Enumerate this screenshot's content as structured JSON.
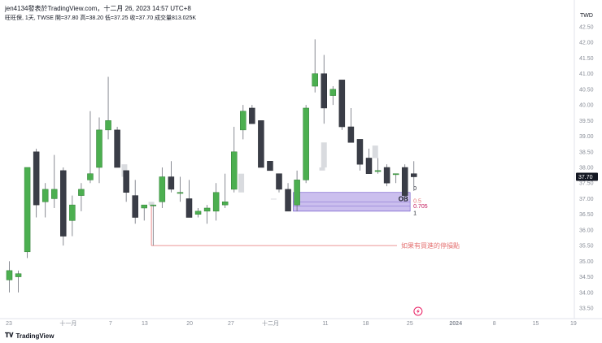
{
  "header": {
    "publish_line": "jen4134發表於TradingView.com，十二月 26, 2023 14:57 UTC+8",
    "symbol_line": "旺旺保, 1天, TWSE 開=37.80 高=38.20 低=37.25 收=37.70 成交量813.025K"
  },
  "axis": {
    "currency": "TWD",
    "last_price_label": "37.70"
  },
  "branding": {
    "logo_text": "TradingView"
  },
  "annotation": {
    "stop_loss_label": "如果有買進的停損點"
  },
  "order_block": {
    "label": "OB",
    "levels": [
      "0",
      "0.5",
      "0.705",
      "1"
    ]
  },
  "colors": {
    "up": "#4caf50",
    "down": "#3a3d47",
    "ghost": "#d9dbdf",
    "order_block_fill": "#b9a9e8",
    "order_block_stroke": "#6a52c8",
    "stop_line": "#e57373",
    "axis_text": "#8a8f99",
    "price_tag_bg": "#131722"
  },
  "chart_data": {
    "type": "candlestick",
    "title": "旺旺保, 1天, TWSE",
    "y_axis": {
      "min": 33.5,
      "max": 42.5,
      "ticks": [
        "33.50",
        "34.00",
        "34.50",
        "35.00",
        "35.50",
        "36.00",
        "36.50",
        "37.00",
        "37.50",
        "38.00",
        "38.50",
        "39.00",
        "39.50",
        "40.00",
        "40.50",
        "41.00",
        "41.50",
        "42.00",
        "42.50"
      ]
    },
    "x_axis": {
      "tick_labels": [
        "23",
        "十一月",
        "7",
        "13",
        "20",
        "27",
        "十二月",
        "11",
        "18",
        "25",
        "2024",
        "8",
        "15",
        "19"
      ]
    },
    "candles": [
      {
        "o": 34.4,
        "h": 35.0,
        "l": 34.0,
        "c": 34.7
      },
      {
        "o": 34.5,
        "h": 34.7,
        "l": 34.0,
        "c": 34.6
      },
      {
        "o": 35.3,
        "h": 38.0,
        "l": 35.1,
        "c": 38.0
      },
      {
        "o": 38.5,
        "h": 38.6,
        "l": 36.4,
        "c": 36.8
      },
      {
        "o": 36.9,
        "h": 37.5,
        "l": 36.4,
        "c": 37.3
      },
      {
        "o": 37.0,
        "h": 38.4,
        "l": 36.7,
        "c": 37.3
      },
      {
        "o": 37.9,
        "h": 38.0,
        "l": 35.5,
        "c": 35.8
      },
      {
        "o": 36.3,
        "h": 37.1,
        "l": 35.8,
        "c": 36.8
      },
      {
        "o": 37.1,
        "h": 37.5,
        "l": 36.6,
        "c": 37.3
      },
      {
        "o": 37.6,
        "h": 39.8,
        "l": 37.5,
        "c": 37.8
      },
      {
        "o": 38.0,
        "h": 39.6,
        "l": 37.5,
        "c": 39.2
      },
      {
        "o": 39.2,
        "h": 40.9,
        "l": 38.9,
        "c": 39.5
      },
      {
        "o": 39.2,
        "h": 39.3,
        "l": 38.0,
        "c": 38.0
      },
      {
        "o": 37.9,
        "h": 37.9,
        "l": 36.9,
        "c": 37.2
      },
      {
        "o": 37.1,
        "h": 37.6,
        "l": 36.2,
        "c": 36.4
      },
      {
        "o": 36.7,
        "h": 36.8,
        "l": 36.3,
        "c": 36.8
      },
      {
        "o": 36.8,
        "h": 36.8,
        "l": 35.5,
        "c": 36.8
      },
      {
        "o": 36.9,
        "h": 38.0,
        "l": 36.7,
        "c": 37.7
      },
      {
        "o": 37.7,
        "h": 38.2,
        "l": 37.2,
        "c": 37.3
      },
      {
        "o": 37.2,
        "h": 37.7,
        "l": 36.9,
        "c": 37.2
      },
      {
        "o": 37.0,
        "h": 37.6,
        "l": 36.4,
        "c": 36.4
      },
      {
        "o": 36.5,
        "h": 36.7,
        "l": 36.4,
        "c": 36.6
      },
      {
        "o": 36.6,
        "h": 36.8,
        "l": 36.2,
        "c": 36.7
      },
      {
        "o": 36.6,
        "h": 37.5,
        "l": 36.3,
        "c": 37.2
      },
      {
        "o": 36.8,
        "h": 37.8,
        "l": 36.7,
        "c": 36.9
      },
      {
        "o": 37.3,
        "h": 39.3,
        "l": 37.2,
        "c": 38.5
      },
      {
        "o": 39.2,
        "h": 40.0,
        "l": 38.9,
        "c": 39.8
      },
      {
        "o": 39.9,
        "h": 40.0,
        "l": 39.4,
        "c": 39.4
      },
      {
        "o": 39.5,
        "h": 39.5,
        "l": 38.0,
        "c": 38.0
      },
      {
        "o": 38.2,
        "h": 38.2,
        "l": 37.9,
        "c": 37.9
      },
      {
        "o": 37.8,
        "h": 37.8,
        "l": 37.2,
        "c": 37.3
      },
      {
        "o": 37.3,
        "h": 37.5,
        "l": 36.6,
        "c": 36.6
      },
      {
        "o": 36.8,
        "h": 37.9,
        "l": 36.6,
        "c": 37.6
      },
      {
        "o": 37.6,
        "h": 40.0,
        "l": 37.5,
        "c": 39.9
      },
      {
        "o": 40.6,
        "h": 42.1,
        "l": 40.4,
        "c": 41.0
      },
      {
        "o": 41.0,
        "h": 41.6,
        "l": 39.4,
        "c": 39.9
      },
      {
        "o": 40.3,
        "h": 40.6,
        "l": 40.0,
        "c": 40.5
      },
      {
        "o": 40.8,
        "h": 40.8,
        "l": 39.2,
        "c": 39.3
      },
      {
        "o": 39.3,
        "h": 39.9,
        "l": 38.8,
        "c": 38.8
      },
      {
        "o": 38.9,
        "h": 38.9,
        "l": 37.9,
        "c": 38.1
      },
      {
        "o": 38.3,
        "h": 38.6,
        "l": 37.8,
        "c": 37.8
      },
      {
        "o": 37.9,
        "h": 38.3,
        "l": 37.8,
        "c": 37.9
      },
      {
        "o": 38.0,
        "h": 38.1,
        "l": 37.4,
        "c": 37.5
      },
      {
        "o": 37.8,
        "h": 37.8,
        "l": 37.5,
        "c": 37.8
      },
      {
        "o": 38.0,
        "h": 38.1,
        "l": 36.9,
        "c": 37.1
      },
      {
        "o": 37.8,
        "h": 38.2,
        "l": 37.25,
        "c": 37.7
      }
    ],
    "ghost_candles": [
      {
        "o": 37.7,
        "h": 38.0,
        "l": 37.7,
        "c": 38.1
      },
      {
        "o": 36.8,
        "h": 36.9,
        "l": 36.7,
        "c": 36.9
      },
      {
        "o": 37.2,
        "h": 37.8,
        "l": 37.2,
        "c": 37.8
      },
      {
        "o": 37.0,
        "h": 37.1,
        "l": 36.9,
        "c": 37.0
      },
      {
        "o": 37.9,
        "h": 38.1,
        "l": 37.8,
        "c": 38.0
      },
      {
        "o": 38.0,
        "h": 38.8,
        "l": 37.9,
        "c": 38.8
      },
      {
        "o": 38.7,
        "h": 38.7,
        "l": 38.2,
        "c": 38.3
      }
    ],
    "order_block": {
      "top": 37.2,
      "bottom": 36.6,
      "levels": [
        37.2,
        36.9,
        36.77,
        36.6
      ]
    },
    "stop_loss_level": 35.5,
    "last_price": 37.7
  }
}
